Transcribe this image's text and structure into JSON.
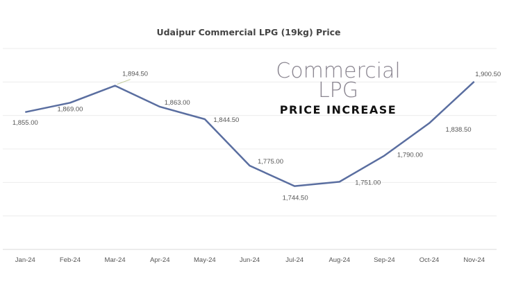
{
  "chart_data": {
    "type": "line",
    "title": "Udaipur Commercial LPG (19kg) Price",
    "categories": [
      "Jan-24",
      "Feb-24",
      "Mar-24",
      "Apr-24",
      "May-24",
      "Jun-24",
      "Jul-24",
      "Aug-24",
      "Sep-24",
      "Oct-24",
      "Nov-24"
    ],
    "values": [
      1855.0,
      1869.0,
      1894.5,
      1863.0,
      1844.5,
      1775.0,
      1744.5,
      1751.0,
      1790.0,
      1838.5,
      1900.5
    ],
    "data_labels": [
      "1,855.00",
      "1,869.00",
      "1,894.50",
      "1,863.00",
      "1,844.50",
      "1,775.00",
      "1,744.50",
      "1,751.00",
      "1,790.00",
      "1,838.50",
      "1,900.50"
    ],
    "xlabel": "",
    "ylabel": "",
    "ylim": [
      1650,
      1950
    ],
    "y_axis_labels_shown": false,
    "grid": true,
    "line_color": "#5a6ea0"
  },
  "overlay": {
    "line1": "Commercial",
    "line2": "LPG",
    "line3": "PRICE INCREASE"
  }
}
